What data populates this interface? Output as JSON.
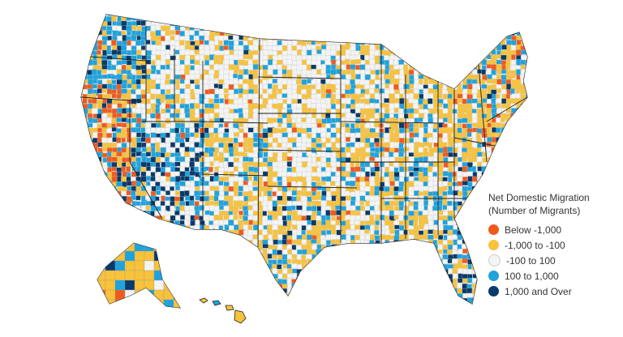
{
  "legend": {
    "title_line1": "Net Domestic Migration",
    "title_line2": "(Number of Migrants)",
    "items": [
      {
        "label": "Below -1,000",
        "color": "#f05a1f"
      },
      {
        "label": "-1,000 to -100",
        "color": "#f8c23a"
      },
      {
        "label": "-100 to 100",
        "color": "#f4f4f4"
      },
      {
        "label": "100 to 1,000",
        "color": "#1ea3dd"
      },
      {
        "label": "1,000 and Over",
        "color": "#083a6b"
      }
    ]
  },
  "colors": {
    "state_border": "#222222",
    "county_border": "#c9c9c9"
  }
}
